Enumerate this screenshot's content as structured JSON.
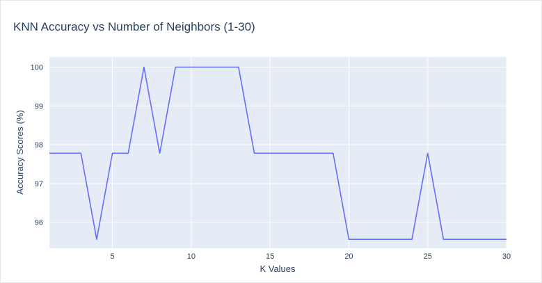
{
  "chart_data": {
    "type": "line",
    "title": "KNN Accuracy vs Number of Neighbors (1-30)",
    "xlabel": "K Values",
    "ylabel": "Accuracy Scores (%)",
    "xlim": [
      1,
      30
    ],
    "ylim": [
      95.33,
      100.26
    ],
    "x_ticks": [
      5,
      10,
      15,
      20,
      25,
      30
    ],
    "y_ticks": [
      96,
      97,
      98,
      99,
      100
    ],
    "grid": true,
    "legend": "none",
    "colors": {
      "plot_background": "#e5ecf6",
      "grid": "#ffffff",
      "line": "#636efa",
      "text": "#2a3f5f"
    },
    "series": [
      {
        "x": [
          1,
          2,
          3,
          4,
          5,
          6,
          7,
          8,
          9,
          10,
          11,
          12,
          13,
          14,
          15,
          16,
          17,
          18,
          19,
          20,
          21,
          22,
          23,
          24,
          25,
          26,
          27,
          28,
          29,
          30
        ],
        "values": [
          97.78,
          97.78,
          97.78,
          95.56,
          97.78,
          97.78,
          100,
          97.78,
          100,
          100,
          100,
          100,
          100,
          97.78,
          97.78,
          97.78,
          97.78,
          97.78,
          97.78,
          95.56,
          95.56,
          95.56,
          95.56,
          95.56,
          97.78,
          95.56,
          95.56,
          95.56,
          95.56,
          95.56
        ]
      }
    ]
  }
}
